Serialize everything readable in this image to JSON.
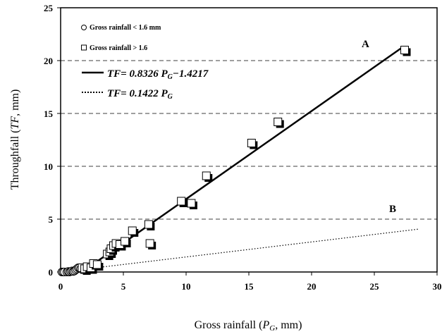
{
  "chart_data": {
    "type": "scatter",
    "xlabel_prefix": "Gross rainfall (",
    "xlabel_var": "P",
    "xlabel_sub": "G",
    "xlabel_suffix": ", mm)",
    "ylabel_prefix": "Throughfall (",
    "ylabel_var": "TF",
    "ylabel_suffix": ", mm)",
    "xlim": [
      0,
      30
    ],
    "ylim": [
      0,
      25
    ],
    "x_ticks": [
      0,
      5,
      10,
      15,
      20,
      25,
      30
    ],
    "y_ticks": [
      0,
      5,
      10,
      15,
      20,
      25
    ],
    "grid": "horizontal-dashed",
    "legend": {
      "small_series": [
        "Gross rainfall < 1.6 mm",
        "Gross rainfall > 1.6"
      ],
      "equations": [
        {
          "prefix": "TF= 0.8326 P",
          "sub": "G",
          "suffix": "−1.4217"
        },
        {
          "prefix": "TF= 0.1422 P",
          "sub": "G",
          "suffix": ""
        }
      ],
      "position": "top-left"
    },
    "series": [
      {
        "name": "Gross rainfall < 1.6 mm",
        "marker": "circle",
        "points": [
          [
            0.1,
            0.0
          ],
          [
            0.2,
            0.0
          ],
          [
            0.3,
            0.0
          ],
          [
            0.5,
            0.0
          ],
          [
            0.6,
            0.05
          ],
          [
            0.7,
            0.0
          ],
          [
            0.8,
            0.05
          ],
          [
            0.9,
            0.1
          ],
          [
            1.0,
            0.05
          ],
          [
            1.1,
            0.1
          ],
          [
            1.2,
            0.2
          ],
          [
            1.3,
            0.3
          ],
          [
            1.4,
            0.4
          ],
          [
            1.5,
            0.4
          ],
          [
            1.6,
            0.3
          ]
        ]
      },
      {
        "name": "Gross rainfall > 1.6",
        "marker": "square",
        "points": [
          [
            1.8,
            0.3
          ],
          [
            2.0,
            0.2
          ],
          [
            2.2,
            0.4
          ],
          [
            2.5,
            0.3
          ],
          [
            2.7,
            0.7
          ],
          [
            3.0,
            0.6
          ],
          [
            3.8,
            1.6
          ],
          [
            4.0,
            1.8
          ],
          [
            4.1,
            2.1
          ],
          [
            4.3,
            2.4
          ],
          [
            4.5,
            2.6
          ],
          [
            4.8,
            2.5
          ],
          [
            5.2,
            2.8
          ],
          [
            5.8,
            3.8
          ],
          [
            7.1,
            4.4
          ],
          [
            7.2,
            2.6
          ],
          [
            9.7,
            6.6
          ],
          [
            10.5,
            6.4
          ],
          [
            11.7,
            9.0
          ],
          [
            15.3,
            12.1
          ],
          [
            17.4,
            14.1
          ],
          [
            27.5,
            20.9
          ]
        ]
      }
    ],
    "lines": [
      {
        "label": "A",
        "slope": 0.8326,
        "intercept": -1.4217,
        "x_start": 1.708,
        "x_end": 27.3,
        "style": "solid"
      },
      {
        "label": "B",
        "slope": 0.1422,
        "intercept": 0,
        "x_start": 2.5,
        "x_end": 28.5,
        "style": "dotted"
      }
    ]
  }
}
